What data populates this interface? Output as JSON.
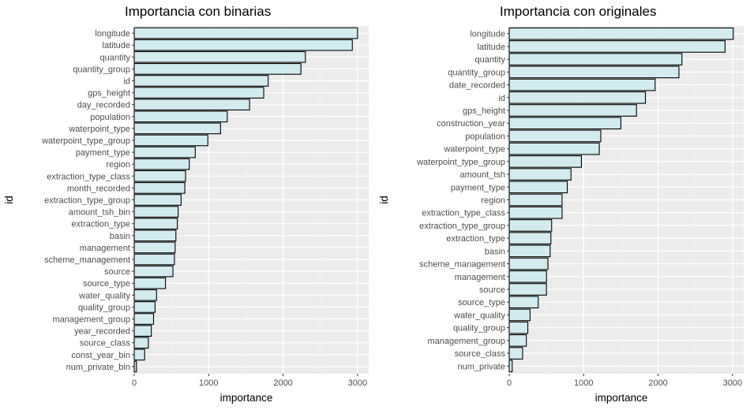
{
  "chart_data": [
    {
      "type": "bar",
      "orientation": "horizontal",
      "title": "Importancia con binarias",
      "xlabel": "importance",
      "ylabel": "id",
      "xlim": [
        0,
        3150
      ],
      "xticks": [
        0,
        1000,
        2000,
        3000
      ],
      "grid": true,
      "categories": [
        "longitude",
        "latitude",
        "quantity",
        "quantity_group",
        "id",
        "gps_height",
        "day_recorded",
        "population",
        "waterpoint_type",
        "waterpoint_type_group",
        "payment_type",
        "region",
        "extraction_type_class",
        "month_recorded",
        "extraction_type_group",
        "amount_tsh_bin",
        "extraction_type",
        "basin",
        "management",
        "scheme_management",
        "source",
        "source_type",
        "water_quality",
        "quality_group",
        "management_group",
        "year_recorded",
        "source_class",
        "const_year_bin",
        "num_private_bin"
      ],
      "values": [
        3000,
        2930,
        2300,
        2240,
        1800,
        1740,
        1550,
        1250,
        1160,
        990,
        820,
        740,
        690,
        680,
        630,
        590,
        580,
        560,
        550,
        540,
        520,
        420,
        300,
        280,
        260,
        230,
        190,
        140,
        30
      ]
    },
    {
      "type": "bar",
      "orientation": "horizontal",
      "title": "Importancia con originales",
      "xlabel": "importance",
      "ylabel": "id",
      "xlim": [
        0,
        3150
      ],
      "xticks": [
        0,
        1000,
        2000,
        3000
      ],
      "grid": true,
      "categories": [
        "longitude",
        "latitude",
        "quantity",
        "quantity_group",
        "date_recorded",
        "id",
        "gps_height",
        "construction_year",
        "population",
        "waterpoint_type",
        "waterpoint_type_group",
        "amount_tsh",
        "payment_type",
        "region",
        "extraction_type_class",
        "extraction_type_group",
        "extraction_type",
        "basin",
        "scheme_management",
        "management",
        "source",
        "source_type",
        "water_quality",
        "quality_group",
        "management_group",
        "source_class",
        "num_private"
      ],
      "values": [
        3010,
        2900,
        2320,
        2280,
        1960,
        1830,
        1710,
        1500,
        1230,
        1210,
        970,
        830,
        780,
        710,
        710,
        570,
        560,
        550,
        520,
        500,
        500,
        390,
        280,
        250,
        230,
        180,
        40
      ]
    }
  ]
}
